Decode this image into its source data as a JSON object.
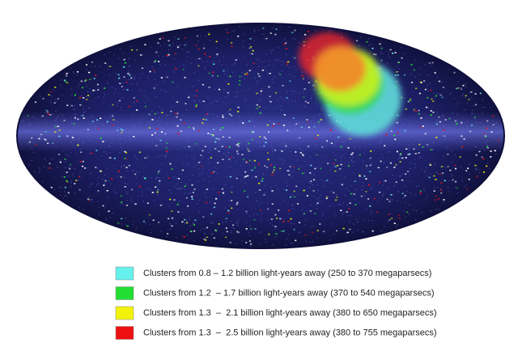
{
  "legend": [
    {
      "label": "Clusters from 0.8 – 1.2 billion light-years away (250 to 370 megaparsecs)",
      "color": "#66f0ec"
    },
    {
      "label": "Clusters from 1.2  – 1.7 billion light-years away (370 to 540 megaparsecs)",
      "color": "#22dd33"
    },
    {
      "label": "Clusters from 1.3  –  2.1 billion light-years away (380 to 650 megaparsecs)",
      "color": "#f2f20a"
    },
    {
      "label": "Clusters from 1.3  –  2.5 billion light-years away (380 to 755 megaparsecs)",
      "color": "#ee1111"
    }
  ]
}
